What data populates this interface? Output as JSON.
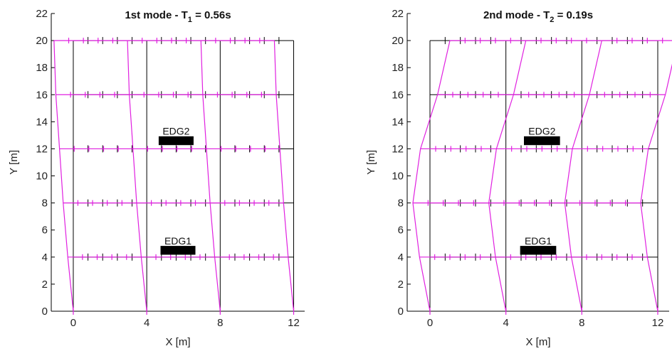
{
  "chart_data": [
    {
      "type": "line",
      "title_main": "1st mode - T",
      "title_sub": "1",
      "title_tail": " = 0.56s",
      "xlabel": "X [m]",
      "ylabel": "Y [m]",
      "xlim": [
        -1.2,
        12.6
      ],
      "ylim": [
        0,
        22
      ],
      "xticks": [
        0,
        4,
        8,
        12
      ],
      "yticks": [
        0,
        2,
        4,
        6,
        8,
        10,
        12,
        14,
        16,
        18,
        20,
        22
      ],
      "grid": false,
      "colors": {
        "undeformed": "#000000",
        "deformed": "#e020e0"
      },
      "undeformed": {
        "columns_x": [
          0,
          4,
          8,
          12
        ],
        "floors_y": [
          4,
          8,
          12,
          16,
          20
        ],
        "base_y": 0
      },
      "deformed_shape": {
        "floor_displacements": [
          {
            "y": 0,
            "dx": 0
          },
          {
            "y": 4,
            "dx": -0.3
          },
          {
            "y": 8,
            "dx": -0.55
          },
          {
            "y": 12,
            "dx": -0.75
          },
          {
            "y": 16,
            "dx": -0.95
          },
          {
            "y": 20,
            "dx": -1.05
          }
        ]
      },
      "annotations": [
        {
          "label": "EDG2",
          "x_center": 5.6,
          "y_label": 13.3,
          "y_box": 12.6,
          "box_w": 1.9,
          "box_h": 0.65
        },
        {
          "label": "EDG1",
          "x_center": 5.7,
          "y_label": 5.2,
          "y_box": 4.5,
          "box_w": 1.9,
          "box_h": 0.65
        }
      ]
    },
    {
      "type": "line",
      "title_main": "2nd mode - T",
      "title_sub": "2",
      "title_tail": " = 0.19s",
      "xlabel": "X [m]",
      "ylabel": "Y [m]",
      "xlim": [
        -1.2,
        12.6
      ],
      "ylim": [
        0,
        22
      ],
      "xticks": [
        0,
        4,
        8,
        12
      ],
      "yticks": [
        0,
        2,
        4,
        6,
        8,
        10,
        12,
        14,
        16,
        18,
        20,
        22
      ],
      "grid": false,
      "colors": {
        "undeformed": "#000000",
        "deformed": "#e020e0"
      },
      "undeformed": {
        "columns_x": [
          0,
          4,
          8,
          12
        ],
        "floors_y": [
          4,
          8,
          12,
          16,
          20
        ],
        "base_y": 0
      },
      "deformed_shape": {
        "floor_displacements": [
          {
            "y": 0,
            "dx": 0
          },
          {
            "y": 4,
            "dx": -0.55
          },
          {
            "y": 8,
            "dx": -0.9
          },
          {
            "y": 12,
            "dx": -0.5
          },
          {
            "y": 16,
            "dx": 0.4
          },
          {
            "y": 20,
            "dx": 1.05
          }
        ]
      },
      "annotations": [
        {
          "label": "EDG2",
          "x_center": 5.9,
          "y_label": 13.3,
          "y_box": 12.6,
          "box_w": 1.9,
          "box_h": 0.65
        },
        {
          "label": "EDG1",
          "x_center": 5.7,
          "y_label": 5.2,
          "y_box": 4.5,
          "box_w": 1.9,
          "box_h": 0.65
        }
      ]
    }
  ]
}
